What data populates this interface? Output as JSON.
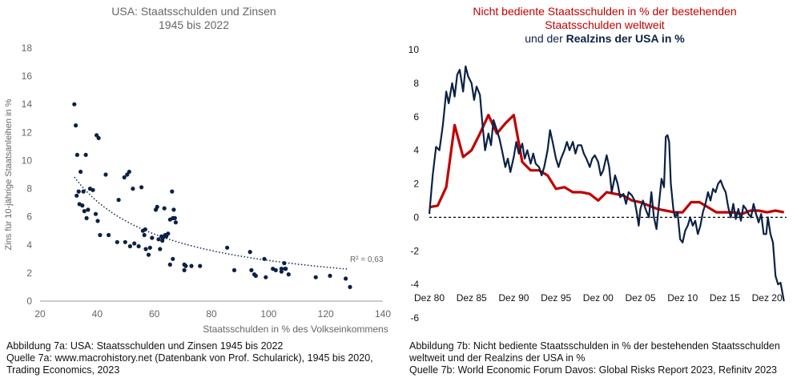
{
  "left_chart": {
    "title_line1": "USA: Staatsschulden und Zinsen",
    "title_line2": "1945 bis 2022",
    "r2_label": "R² = 0,63"
  },
  "right_chart": {
    "title_line1": "Nicht bediente Staatsschulden in % der bestehenden",
    "title_line2": "Staatsschulden weltweit",
    "title_line3_prefix": "und der ",
    "title_line3_highlight": "Realzins der USA in %"
  },
  "captions": {
    "left_line1": "Abbildung 7a: USA: Staatsschulden und Zinsen 1945 bis 2022",
    "left_line2": "Quelle 7a: www.macrohistory.net (Datenbank von Prof. Schularick), 1945 bis 2020,",
    "left_line3": "Trading Economics, 2023",
    "right_line1": "Abbildung 7b: Nicht bediente Staatsschulden in % der bestehenden Staatsschulden",
    "right_line2": "weltweit und der Realzins der USA in %",
    "right_line3": "Quelle 7b: World Economic Forum Davos: Global Risks Report 2023, Refinitv 2023"
  },
  "colors": {
    "navy": "#0b2145",
    "red": "#c00000",
    "axis": "#999999",
    "text": "#666666"
  },
  "chart_data": [
    {
      "type": "scatter",
      "title": "USA: Staatsschulden und Zinsen 1945 bis 2022",
      "xlabel": "Staatsschulden in % des Volkseinkommens",
      "ylabel": "Zins für 10-jährige Staatsanleihen in %",
      "xlim": [
        20,
        140
      ],
      "ylim": [
        0,
        18
      ],
      "xticks": [
        20,
        40,
        60,
        80,
        100,
        120,
        140
      ],
      "yticks": [
        0,
        2,
        4,
        6,
        8,
        10,
        12,
        14,
        16,
        18
      ],
      "trendline": {
        "type": "power",
        "a": 262.5,
        "b": -0.979,
        "x_range": [
          32,
          128
        ],
        "r2_label": "R² = 0,63"
      },
      "points": [
        [
          32,
          14.0
        ],
        [
          32.5,
          12.5
        ],
        [
          33,
          10.4
        ],
        [
          32.8,
          7.5
        ],
        [
          33.5,
          7.8
        ],
        [
          33.8,
          6.9
        ],
        [
          34.2,
          9.2
        ],
        [
          34.8,
          6.8
        ],
        [
          35.2,
          7.8
        ],
        [
          35.5,
          6.4
        ],
        [
          36,
          10.4
        ],
        [
          36.3,
          5.9
        ],
        [
          36.8,
          6.5
        ],
        [
          37.5,
          8.0
        ],
        [
          38.5,
          7.9
        ],
        [
          39.5,
          6.2
        ],
        [
          39.8,
          11.8
        ],
        [
          40.5,
          11.6
        ],
        [
          40.2,
          5.7
        ],
        [
          41,
          4.7
        ],
        [
          43,
          9.0
        ],
        [
          44,
          4.7
        ],
        [
          47,
          4.2
        ],
        [
          47.5,
          7.2
        ],
        [
          49.5,
          8.8
        ],
        [
          49.8,
          4.2
        ],
        [
          50.5,
          9.0
        ],
        [
          51.2,
          9.2
        ],
        [
          51.5,
          3.9
        ],
        [
          52.5,
          8.0
        ],
        [
          53,
          4.1
        ],
        [
          54.5,
          3.9
        ],
        [
          55.5,
          8.1
        ],
        [
          56,
          5.0
        ],
        [
          56.5,
          4.7
        ],
        [
          56.8,
          5.1
        ],
        [
          57,
          3.7
        ],
        [
          58,
          3.3
        ],
        [
          58.5,
          3.8
        ],
        [
          59.2,
          4.5
        ],
        [
          60.5,
          6.5
        ],
        [
          61,
          6.7
        ],
        [
          61.5,
          4.4
        ],
        [
          62,
          3.7
        ],
        [
          62.5,
          4.6
        ],
        [
          62.8,
          4.3
        ],
        [
          63,
          4.5
        ],
        [
          63.5,
          6.6
        ],
        [
          63.8,
          4.7
        ],
        [
          64.2,
          4.6
        ],
        [
          64.8,
          4.8
        ],
        [
          65.5,
          5.8
        ],
        [
          65.5,
          2.6
        ],
        [
          66.2,
          7.8
        ],
        [
          66.5,
          5.9
        ],
        [
          66.8,
          6.5
        ],
        [
          67.5,
          5.6
        ],
        [
          66.5,
          3.0
        ],
        [
          67.2,
          5.9
        ],
        [
          70.5,
          2.2
        ],
        [
          70.5,
          2.6
        ],
        [
          71,
          2.5
        ],
        [
          73,
          2.5
        ],
        [
          76,
          2.5
        ],
        [
          85.5,
          3.8
        ],
        [
          88,
          2.2
        ],
        [
          93.5,
          3.5
        ],
        [
          94,
          2.2
        ],
        [
          95,
          1.9
        ],
        [
          95.5,
          1.8
        ],
        [
          98.5,
          3.0
        ],
        [
          99,
          1.7
        ],
        [
          101.5,
          2.3
        ],
        [
          102.5,
          2.2
        ],
        [
          104.5,
          2.3
        ],
        [
          104.5,
          2.1
        ],
        [
          105.5,
          2.7
        ],
        [
          105.8,
          2.3
        ],
        [
          106,
          2.3
        ],
        [
          107,
          1.9
        ],
        [
          116.5,
          1.7
        ],
        [
          121.5,
          1.8
        ],
        [
          127,
          1.6
        ],
        [
          128.5,
          1.0
        ]
      ]
    },
    {
      "type": "line",
      "title": "Nicht bediente Staatsschulden in % der bestehenden Staatsschulden weltweit und der Realzins der USA in %",
      "xlim": [
        1980,
        2022.5
      ],
      "ylim": [
        -6,
        10
      ],
      "xticks": [
        1980,
        1985,
        1990,
        1995,
        2000,
        2005,
        2010,
        2015,
        2020
      ],
      "xtick_labels": [
        "Dez 80",
        "Dez 85",
        "Dez 90",
        "Dez 95",
        "Dez 00",
        "Dez 05",
        "Dez 10",
        "Dez 15",
        "Dez 20"
      ],
      "yticks": [
        -6,
        -4,
        -2,
        0,
        2,
        4,
        6,
        8,
        10
      ],
      "zero_line": true,
      "series": [
        {
          "name": "Nicht bediente Staatsschulden in % der bestehenden Staatsschulden weltweit",
          "color": "#c00000",
          "points": [
            [
              1980,
              0.6
            ],
            [
              1981,
              0.7
            ],
            [
              1982,
              1.8
            ],
            [
              1983,
              5.5
            ],
            [
              1984,
              3.6
            ],
            [
              1985,
              4.0
            ],
            [
              1986,
              5.0
            ],
            [
              1987,
              6.1
            ],
            [
              1988,
              5.0
            ],
            [
              1989,
              5.6
            ],
            [
              1990,
              6.1
            ],
            [
              1991,
              3.3
            ],
            [
              1992,
              2.8
            ],
            [
              1993,
              2.8
            ],
            [
              1994,
              2.5
            ],
            [
              1995,
              1.7
            ],
            [
              1996,
              1.8
            ],
            [
              1997,
              1.5
            ],
            [
              1998,
              1.5
            ],
            [
              1999,
              1.4
            ],
            [
              2000,
              1.0
            ],
            [
              2001,
              1.5
            ],
            [
              2002,
              1.4
            ],
            [
              2003,
              1.3
            ],
            [
              2004,
              1.0
            ],
            [
              2005,
              0.9
            ],
            [
              2006,
              0.7
            ],
            [
              2007,
              0.5
            ],
            [
              2008,
              0.4
            ],
            [
              2009,
              0.3
            ],
            [
              2010,
              0.3
            ],
            [
              2011,
              0.9
            ],
            [
              2012,
              0.9
            ],
            [
              2013,
              0.6
            ],
            [
              2014,
              0.3
            ],
            [
              2015,
              0.3
            ],
            [
              2016,
              0.3
            ],
            [
              2017,
              0.2
            ],
            [
              2018,
              0.4
            ],
            [
              2019,
              0.4
            ],
            [
              2020,
              0.3
            ],
            [
              2021,
              0.4
            ],
            [
              2022,
              0.3
            ]
          ]
        },
        {
          "name": "Realzins der USA in %",
          "color": "#0b2145",
          "points": [
            [
              1980,
              0.2
            ],
            [
              1980.4,
              2.5
            ],
            [
              1980.8,
              4.2
            ],
            [
              1981.2,
              4.0
            ],
            [
              1981.6,
              5.5
            ],
            [
              1982,
              7.5
            ],
            [
              1982.3,
              6.8
            ],
            [
              1982.7,
              8.0
            ],
            [
              1983,
              7.2
            ],
            [
              1983.3,
              8.5
            ],
            [
              1983.6,
              8.8
            ],
            [
              1984,
              7.5
            ],
            [
              1984.3,
              9.0
            ],
            [
              1984.6,
              8.4
            ],
            [
              1985,
              8.0
            ],
            [
              1985.3,
              7.0
            ],
            [
              1985.6,
              7.8
            ],
            [
              1986,
              7.3
            ],
            [
              1986.3,
              5.5
            ],
            [
              1986.6,
              4.0
            ],
            [
              1987,
              5.0
            ],
            [
              1987.3,
              4.3
            ],
            [
              1987.6,
              5.8
            ],
            [
              1988,
              5.2
            ],
            [
              1988.3,
              4.7
            ],
            [
              1988.6,
              4.0
            ],
            [
              1989,
              3.0
            ],
            [
              1989.3,
              3.5
            ],
            [
              1989.6,
              2.7
            ],
            [
              1990,
              3.6
            ],
            [
              1990.3,
              4.5
            ],
            [
              1990.6,
              3.8
            ],
            [
              1991,
              4.4
            ],
            [
              1991.3,
              3.5
            ],
            [
              1991.6,
              4.0
            ],
            [
              1992,
              3.2
            ],
            [
              1992.3,
              3.8
            ],
            [
              1992.6,
              3.2
            ],
            [
              1993,
              3.0
            ],
            [
              1993.3,
              2.5
            ],
            [
              1993.6,
              3.0
            ],
            [
              1994,
              4.0
            ],
            [
              1994.3,
              5.2
            ],
            [
              1994.6,
              4.5
            ],
            [
              1995,
              3.5
            ],
            [
              1995.3,
              3.0
            ],
            [
              1995.6,
              3.5
            ],
            [
              1996,
              4.0
            ],
            [
              1996.3,
              4.5
            ],
            [
              1996.6,
              4.0
            ],
            [
              1997,
              4.5
            ],
            [
              1997.3,
              3.8
            ],
            [
              1997.6,
              4.3
            ],
            [
              1998,
              4.3
            ],
            [
              1998.3,
              3.8
            ],
            [
              1998.6,
              3.5
            ],
            [
              1999,
              3.0
            ],
            [
              1999.3,
              3.5
            ],
            [
              1999.6,
              3.7
            ],
            [
              2000,
              3.3
            ],
            [
              2000.3,
              2.5
            ],
            [
              2000.6,
              2.8
            ],
            [
              2001,
              3.7
            ],
            [
              2001.3,
              3.0
            ],
            [
              2001.6,
              1.5
            ],
            [
              2002,
              2.5
            ],
            [
              2002.3,
              2.0
            ],
            [
              2002.6,
              1.2
            ],
            [
              2003,
              1.4
            ],
            [
              2003.3,
              0.8
            ],
            [
              2003.6,
              1.5
            ],
            [
              2004,
              1.3
            ],
            [
              2004.3,
              1.0
            ],
            [
              2004.6,
              0.2
            ],
            [
              2004.8,
              -0.5
            ],
            [
              2005,
              0.5
            ],
            [
              2005.3,
              1.0
            ],
            [
              2005.6,
              0.5
            ],
            [
              2006,
              0.0
            ],
            [
              2006.3,
              1.5
            ],
            [
              2006.6,
              0.0
            ],
            [
              2006.9,
              -0.7
            ],
            [
              2007.2,
              0.8
            ],
            [
              2007.5,
              2.3
            ],
            [
              2007.8,
              1.8
            ],
            [
              2008,
              4.8
            ],
            [
              2008.2,
              4.9
            ],
            [
              2008.4,
              4.5
            ],
            [
              2008.6,
              2.0
            ],
            [
              2008.9,
              0.5
            ],
            [
              2009.1,
              0.0
            ],
            [
              2009.4,
              0.3
            ],
            [
              2009.7,
              -1.3
            ],
            [
              2010,
              -1.5
            ],
            [
              2010.3,
              -0.8
            ],
            [
              2010.6,
              -0.5
            ],
            [
              2010.9,
              0.0
            ],
            [
              2011.2,
              -0.5
            ],
            [
              2011.5,
              -0.2
            ],
            [
              2011.8,
              -1.0
            ],
            [
              2012.1,
              -0.5
            ],
            [
              2012.4,
              0.3
            ],
            [
              2012.7,
              0.8
            ],
            [
              2013,
              1.5
            ],
            [
              2013.3,
              1.0
            ],
            [
              2013.6,
              1.7
            ],
            [
              2013.9,
              1.5
            ],
            [
              2014.2,
              2.0
            ],
            [
              2014.5,
              2.2
            ],
            [
              2014.8,
              1.8
            ],
            [
              2015.1,
              1.5
            ],
            [
              2015.4,
              0.6
            ],
            [
              2015.7,
              0.0
            ],
            [
              2016,
              0.8
            ],
            [
              2016.3,
              -0.1
            ],
            [
              2016.6,
              0.5
            ],
            [
              2016.9,
              -0.2
            ],
            [
              2017.2,
              0.7
            ],
            [
              2017.5,
              0.5
            ],
            [
              2017.8,
              0.2
            ],
            [
              2018.1,
              0.0
            ],
            [
              2018.4,
              0.8
            ],
            [
              2018.7,
              0.2
            ],
            [
              2019,
              -0.3
            ],
            [
              2019.3,
              0.2
            ],
            [
              2019.6,
              -1.0
            ],
            [
              2019.9,
              -1.0
            ],
            [
              2020.1,
              0.0
            ],
            [
              2020.4,
              -1.0
            ],
            [
              2020.7,
              -1.5
            ],
            [
              2021,
              -3.5
            ],
            [
              2021.3,
              -4.0
            ],
            [
              2021.6,
              -3.9
            ],
            [
              2022,
              -5.0
            ]
          ]
        }
      ]
    }
  ]
}
